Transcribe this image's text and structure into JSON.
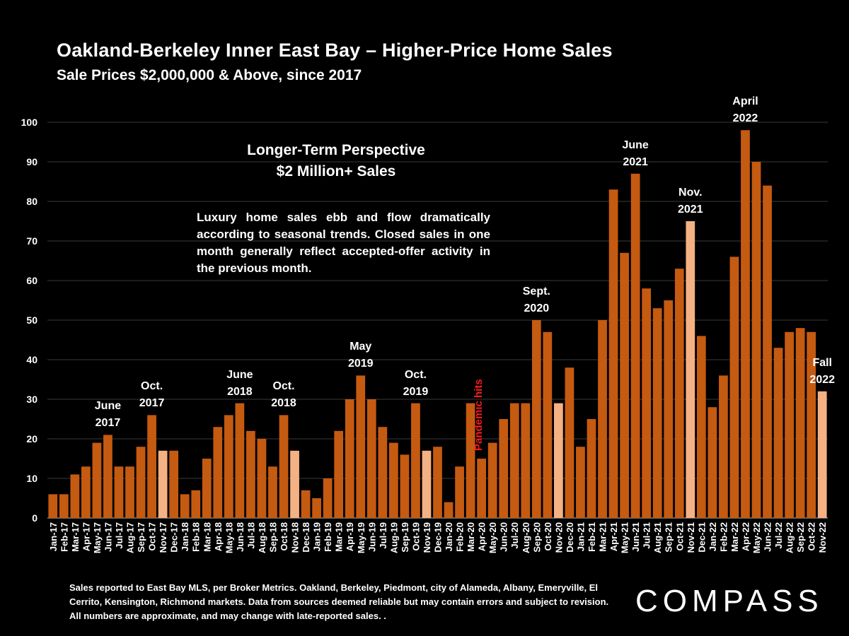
{
  "header": {
    "title": "Oakland-Berkeley Inner East Bay – Higher-Price Home Sales",
    "subtitle": "Sale Prices $2,000,000 & Above, since 2017"
  },
  "textbox": {
    "perspective_line1": "Longer-Term Perspective",
    "perspective_line2": "$2 Million+ Sales",
    "description": "Luxury home sales ebb and flow dramatically according to seasonal trends. Closed sales in one month generally reflect accepted-offer activity in the previous month."
  },
  "annotations": {
    "pandemic": "Pandemic hits",
    "labels": [
      {
        "idx": 5,
        "line1": "June",
        "line2": "2017"
      },
      {
        "idx": 9,
        "line1": "Oct.",
        "line2": "2017"
      },
      {
        "idx": 17,
        "line1": "June",
        "line2": "2018"
      },
      {
        "idx": 21,
        "line1": "Oct.",
        "line2": "2018"
      },
      {
        "idx": 28,
        "line1": "May",
        "line2": "2019"
      },
      {
        "idx": 33,
        "line1": "Oct.",
        "line2": "2019"
      },
      {
        "idx": 44,
        "line1": "Sept.",
        "line2": "2020"
      },
      {
        "idx": 53,
        "line1": "June",
        "line2": "2021"
      },
      {
        "idx": 58,
        "line1": "Nov.",
        "line2": "2021"
      },
      {
        "idx": 63,
        "line1": "April",
        "line2": "2022"
      },
      {
        "idx": 70,
        "line1": "Fall",
        "line2": "2022"
      }
    ]
  },
  "footnote": "Sales reported to East Bay MLS, per Broker Metrics. Oakland, Berkeley, Piedmont, city of Alameda, Albany, Emeryville, El Cerrito, Kensington, Richmond markets. Data from sources deemed reliable but may contain errors and subject to revision. All numbers are approximate, and may change with late-reported sales. .",
  "logo": "COMPASS",
  "colors": {
    "bar": "#c55a11",
    "highlight_bar": "#f4b183",
    "grid": "#3a3a3a",
    "pandemic_label": "#ff1a1a"
  },
  "chart_data": {
    "type": "bar",
    "title": "Oakland-Berkeley Inner East Bay – Higher-Price Home Sales",
    "subtitle": "Sale Prices $2,000,000 & Above, since 2017",
    "xlabel": "",
    "ylabel": "",
    "ylim": [
      0,
      100
    ],
    "yticks": [
      0,
      10,
      20,
      30,
      40,
      50,
      60,
      70,
      80,
      90,
      100
    ],
    "grid": true,
    "legend": "none",
    "highlighted_categories": [
      "Nov-17",
      "Nov-18",
      "Nov-19",
      "Nov-20",
      "Nov-21",
      "Nov-22"
    ],
    "categories": [
      "Jan-17",
      "Feb-17",
      "Mar-17",
      "Apr-17",
      "May-17",
      "Jun-17",
      "Jul-17",
      "Aug-17",
      "Sep-17",
      "Oct-17",
      "Nov-17",
      "Dec-17",
      "Jan-18",
      "Feb-18",
      "Mar-18",
      "Apr-18",
      "May-18",
      "Jun-18",
      "Jul-18",
      "Aug-18",
      "Sep-18",
      "Oct-18",
      "Nov-18",
      "Dec-18",
      "Jan-19",
      "Feb-19",
      "Mar-19",
      "Apr-19",
      "May-19",
      "Jun-19",
      "Jul-19",
      "Aug-19",
      "Sep-19",
      "Oct-19",
      "Nov-19",
      "Dec-19",
      "Jan-20",
      "Feb-20",
      "Mar-20",
      "Apr-20",
      "May-20",
      "Jun-20",
      "Jul-20",
      "Aug-20",
      "Sep-20",
      "Oct-20",
      "Nov-20",
      "Dec-20",
      "Jan-21",
      "Feb-21",
      "Mar-21",
      "Apr-21",
      "May-21",
      "Jun-21",
      "Jul-21",
      "Aug-21",
      "Sep-21",
      "Oct-21",
      "Nov-21",
      "Dec-21",
      "Jan-22",
      "Feb-22",
      "Mar-22",
      "Apr-22",
      "May-22",
      "Jun-22",
      "Jul-22",
      "Aug-22",
      "Sep-22",
      "Oct-22",
      "Nov-22"
    ],
    "values": [
      6,
      6,
      11,
      13,
      19,
      21,
      13,
      13,
      18,
      26,
      17,
      17,
      6,
      7,
      15,
      23,
      26,
      29,
      22,
      20,
      13,
      26,
      17,
      7,
      5,
      10,
      22,
      30,
      36,
      30,
      23,
      19,
      16,
      29,
      17,
      18,
      4,
      13,
      29,
      15,
      19,
      25,
      29,
      29,
      50,
      47,
      29,
      38,
      18,
      25,
      50,
      83,
      67,
      87,
      58,
      53,
      55,
      63,
      75,
      46,
      28,
      36,
      66,
      98,
      90,
      84,
      43,
      47,
      48,
      47,
      32
    ]
  }
}
